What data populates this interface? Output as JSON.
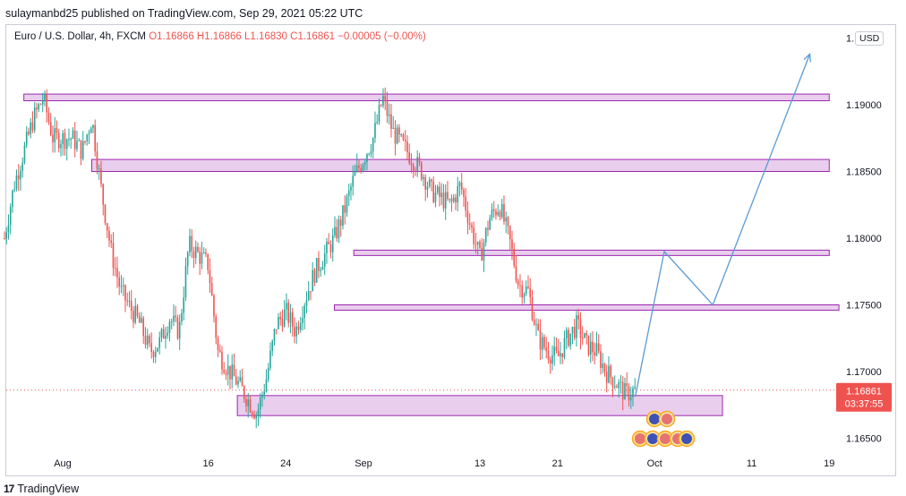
{
  "header": {
    "published_line": "sulaymanbd25 published on TradingView.com, Sep 29, 2021 05:22 UTC"
  },
  "legend": {
    "symbol": "Euro / U.S. Dollar, 4h, FXCM",
    "ohlc": "O1.16866 H1.16866 L1.16830 C1.16861 −0.00005 (−0.00%)"
  },
  "currency": "USD",
  "footer": {
    "brand": "TradingView"
  },
  "colors": {
    "up": "#26a69a",
    "down": "#ef5350",
    "zone_fill": "#e1bee7",
    "zone_stroke": "#9c27b0",
    "projection": "#5b9bd5",
    "price_tag": "#ef5350"
  },
  "chart_data": {
    "type": "candlestick",
    "title": "",
    "x_tick_labels": [
      "Aug",
      "16",
      "24",
      "Sep",
      "13",
      "21",
      "Oct",
      "11",
      "19"
    ],
    "y_tick_labels": [
      "1.1…",
      "1.19000",
      "1.18500",
      "1.18000",
      "1.17500",
      "1.17000",
      "1.16500"
    ],
    "y_ticks": [
      1.195,
      1.19,
      1.185,
      1.18,
      1.175,
      1.17,
      1.165
    ],
    "ylim": [
      1.1635,
      1.1975
    ],
    "last_price": {
      "value": "1.16861",
      "countdown": "03:37:55"
    },
    "price_path": [
      [
        "Jul 26",
        1.18
      ],
      [
        "Jul 27",
        1.184
      ],
      [
        "Jul 29",
        1.189
      ],
      [
        "Jul 30",
        1.1905
      ],
      [
        "Jul 31",
        1.1875
      ],
      [
        "Aug 2",
        1.1875
      ],
      [
        "Aug 3",
        1.1865
      ],
      [
        "Aug 4",
        1.189
      ],
      [
        "Aug 5",
        1.1835
      ],
      [
        "Aug 6",
        1.179
      ],
      [
        "Aug 7",
        1.176
      ],
      [
        "Aug 9",
        1.1735
      ],
      [
        "Aug 10",
        1.1715
      ],
      [
        "Aug 11",
        1.1722
      ],
      [
        "Aug 12",
        1.174
      ],
      [
        "Aug 13",
        1.173
      ],
      [
        "Aug 14",
        1.1795
      ],
      [
        "Aug 16",
        1.178
      ],
      [
        "Aug 17",
        1.1715
      ],
      [
        "Aug 18",
        1.1702
      ],
      [
        "Aug 19",
        1.1692
      ],
      [
        "Aug 20",
        1.168
      ],
      [
        "Aug 21",
        1.1668
      ],
      [
        "Aug 22",
        1.1695
      ],
      [
        "Aug 23",
        1.1735
      ],
      [
        "Aug 24",
        1.1745
      ],
      [
        "Aug 25",
        1.173
      ],
      [
        "Aug 26",
        1.1755
      ],
      [
        "Aug 27",
        1.1775
      ],
      [
        "Aug 29",
        1.18
      ],
      [
        "Aug 30",
        1.182
      ],
      [
        "Aug 31",
        1.1845
      ],
      [
        "Sep 2",
        1.1875
      ],
      [
        "Sep 3",
        1.1905
      ],
      [
        "Sep 4",
        1.188
      ],
      [
        "Sep 5",
        1.187
      ],
      [
        "Sep 6",
        1.186
      ],
      [
        "Sep 7",
        1.185
      ],
      [
        "Sep 8",
        1.1835
      ],
      [
        "Sep 9",
        1.183
      ],
      [
        "Sep 10",
        1.1825
      ],
      [
        "Sep 11",
        1.184
      ],
      [
        "Sep 12",
        1.181
      ],
      [
        "Sep 13",
        1.1785
      ],
      [
        "Sep 14",
        1.1815
      ],
      [
        "Sep 15",
        1.1825
      ],
      [
        "Sep 16",
        1.18
      ],
      [
        "Sep 17",
        1.1765
      ],
      [
        "Sep 18",
        1.176
      ],
      [
        "Sep 19",
        1.1725
      ],
      [
        "Sep 20",
        1.1715
      ],
      [
        "Sep 21",
        1.171
      ],
      [
        "Sep 22",
        1.1725
      ],
      [
        "Sep 23",
        1.1735
      ],
      [
        "Sep 24",
        1.172
      ],
      [
        "Sep 25",
        1.1715
      ],
      [
        "Sep 26",
        1.17
      ],
      [
        "Sep 27",
        1.1692
      ],
      [
        "Sep 28",
        1.1683
      ],
      [
        "Sep 29",
        1.1686
      ]
    ],
    "zones": [
      {
        "low": 1.1903,
        "high": 1.1908,
        "from": "Jul 28",
        "to": "Oct 19"
      },
      {
        "low": 1.185,
        "high": 1.1859,
        "from": "Aug 4",
        "to": "Oct 19"
      },
      {
        "low": 1.1787,
        "high": 1.1791,
        "from": "Aug 31",
        "to": "Oct 19"
      },
      {
        "low": 1.1746,
        "high": 1.175,
        "from": "Aug 29",
        "to": "Oct 20"
      },
      {
        "low": 1.1667,
        "high": 1.1682,
        "from": "Aug 19",
        "to": "Oct 8"
      }
    ],
    "projection_path": [
      [
        "Sep 29",
        1.1681
      ],
      [
        "Oct 2",
        1.179
      ],
      [
        "Oct 7",
        1.175
      ],
      [
        "Oct 17",
        1.1938
      ]
    ]
  }
}
